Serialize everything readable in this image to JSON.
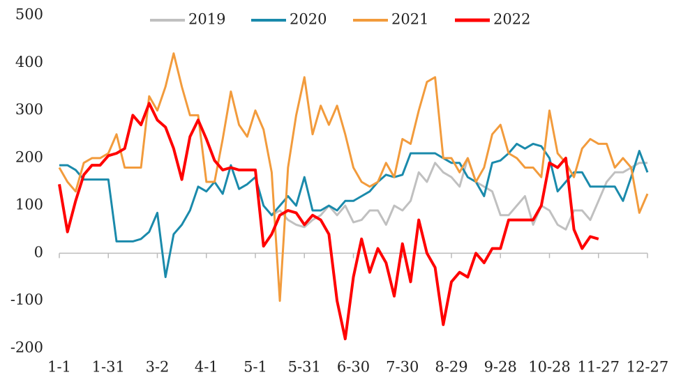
{
  "chart_data": {
    "type": "line",
    "categories": [
      "1-1",
      null,
      null,
      null,
      null,
      null,
      "1-31",
      null,
      null,
      null,
      null,
      null,
      "3-2",
      null,
      null,
      null,
      null,
      null,
      "4-1",
      null,
      null,
      null,
      null,
      null,
      "5-1",
      null,
      null,
      null,
      null,
      null,
      "5-31",
      null,
      null,
      null,
      null,
      null,
      "6-30",
      null,
      null,
      null,
      null,
      null,
      "7-30",
      null,
      null,
      null,
      null,
      null,
      "8-29",
      null,
      null,
      null,
      null,
      null,
      "9-28",
      null,
      null,
      null,
      null,
      null,
      "10-28",
      null,
      null,
      null,
      null,
      null,
      "11-27",
      null,
      null,
      null,
      null,
      null,
      "12-27"
    ],
    "series": [
      {
        "name": "2019",
        "color": "#c0c0c0",
        "values": [
          null,
          null,
          null,
          null,
          null,
          null,
          null,
          null,
          null,
          null,
          null,
          null,
          null,
          null,
          null,
          null,
          null,
          null,
          null,
          null,
          null,
          null,
          null,
          null,
          null,
          null,
          80,
          90,
          70,
          60,
          55,
          70,
          80,
          100,
          80,
          100,
          65,
          70,
          90,
          90,
          60,
          100,
          90,
          110,
          170,
          150,
          190,
          170,
          160,
          140,
          200,
          150,
          140,
          130,
          80,
          80,
          100,
          120,
          60,
          100,
          90,
          60,
          50,
          90,
          90,
          70,
          110,
          150,
          170,
          170,
          180,
          190,
          190
        ]
      },
      {
        "name": "2020",
        "color": "#1a8aab",
        "values": [
          185,
          185,
          175,
          155,
          155,
          155,
          155,
          25,
          25,
          25,
          30,
          45,
          85,
          -50,
          40,
          60,
          90,
          140,
          130,
          150,
          125,
          185,
          135,
          145,
          160,
          100,
          80,
          100,
          120,
          100,
          160,
          90,
          90,
          100,
          90,
          110,
          110,
          120,
          130,
          150,
          165,
          160,
          165,
          210,
          210,
          210,
          210,
          200,
          190,
          190,
          160,
          150,
          120,
          190,
          195,
          210,
          230,
          220,
          230,
          225,
          200,
          130,
          150,
          170,
          170,
          140,
          140,
          140,
          140,
          110,
          160,
          215,
          170
        ]
      },
      {
        "name": "2021",
        "color": "#f29b3c",
        "values": [
          180,
          150,
          130,
          190,
          200,
          200,
          210,
          250,
          180,
          180,
          180,
          330,
          300,
          350,
          420,
          350,
          290,
          290,
          150,
          150,
          240,
          340,
          270,
          245,
          300,
          260,
          170,
          -100,
          180,
          290,
          370,
          250,
          310,
          270,
          310,
          250,
          180,
          150,
          140,
          150,
          190,
          160,
          240,
          230,
          300,
          360,
          370,
          200,
          200,
          170,
          200,
          150,
          180,
          250,
          270,
          210,
          200,
          180,
          180,
          160,
          300,
          210,
          190,
          160,
          220,
          240,
          230,
          230,
          180,
          200,
          180,
          85,
          125
        ]
      },
      {
        "name": "2022",
        "color": "#ff0000",
        "values": [
          145,
          45,
          110,
          165,
          185,
          185,
          205,
          210,
          220,
          290,
          270,
          315,
          280,
          265,
          220,
          155,
          245,
          280,
          240,
          195,
          175,
          180,
          175,
          175,
          175,
          15,
          40,
          80,
          90,
          85,
          60,
          80,
          70,
          40,
          -100,
          -180,
          -50,
          30,
          -40,
          10,
          -20,
          -90,
          20,
          -60,
          70,
          0,
          -30,
          -150,
          -60,
          -40,
          -50,
          0,
          -20,
          10,
          10,
          70,
          70,
          70,
          70,
          100,
          190,
          180,
          200,
          50,
          10,
          35,
          30,
          null,
          null,
          null,
          null,
          null,
          null
        ]
      }
    ],
    "ylim": [
      -200,
      500
    ],
    "yticks": [
      -200,
      -100,
      0,
      100,
      200,
      300,
      400,
      500
    ]
  }
}
